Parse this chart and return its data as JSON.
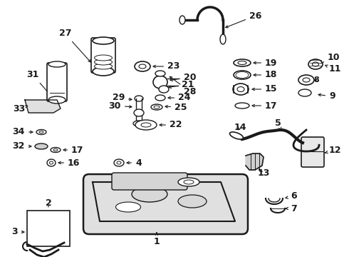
{
  "bg_color": "#ffffff",
  "lc": "#1a1a1a",
  "figsize": [
    4.9,
    3.6
  ],
  "dpi": 100,
  "font_bold": true
}
